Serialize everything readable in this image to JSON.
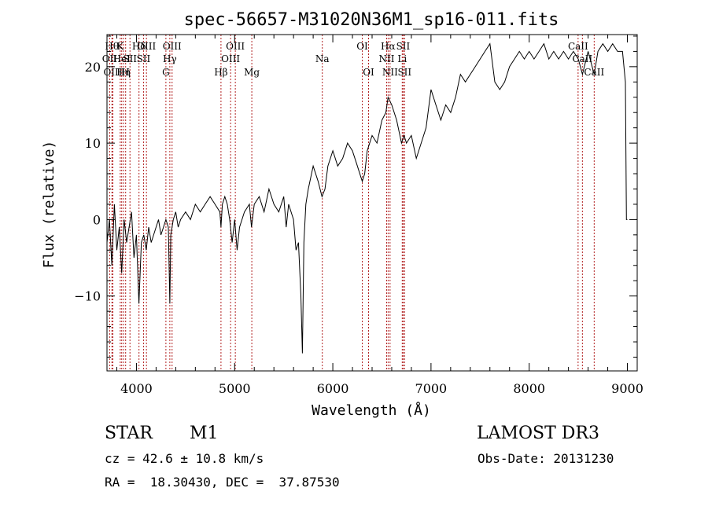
{
  "chart_data": {
    "type": "line",
    "title": "spec-56657-M31020N36M1_sp16-011.fits",
    "xlabel": "Wavelength (Å)",
    "ylabel": "Flux (relative)",
    "xlim": [
      3700,
      9100
    ],
    "ylim": [
      -19.8,
      24.2
    ],
    "x_ticks": [
      4000,
      5000,
      6000,
      7000,
      8000,
      9000
    ],
    "y_ticks": [
      -10,
      0,
      10,
      20
    ],
    "grid": false,
    "line_color": "#000000",
    "marker_color": "#b22222",
    "spectrum": [
      [
        3700,
        -3
      ],
      [
        3725,
        0
      ],
      [
        3750,
        -6
      ],
      [
        3775,
        2
      ],
      [
        3800,
        -4
      ],
      [
        3825,
        -1
      ],
      [
        3850,
        -7
      ],
      [
        3875,
        0
      ],
      [
        3900,
        -3
      ],
      [
        3925,
        -1
      ],
      [
        3950,
        1
      ],
      [
        3975,
        -5
      ],
      [
        4000,
        -2
      ],
      [
        4025,
        -11
      ],
      [
        4050,
        -3
      ],
      [
        4075,
        -2
      ],
      [
        4100,
        -4
      ],
      [
        4125,
        -1
      ],
      [
        4150,
        -3
      ],
      [
        4175,
        -2
      ],
      [
        4200,
        -1
      ],
      [
        4225,
        0
      ],
      [
        4250,
        -2
      ],
      [
        4275,
        -1
      ],
      [
        4300,
        0
      ],
      [
        4325,
        -1
      ],
      [
        4340,
        -11
      ],
      [
        4350,
        -2
      ],
      [
        4375,
        0
      ],
      [
        4400,
        1
      ],
      [
        4425,
        -1
      ],
      [
        4450,
        0
      ],
      [
        4500,
        1
      ],
      [
        4550,
        0
      ],
      [
        4600,
        2
      ],
      [
        4650,
        1
      ],
      [
        4700,
        2
      ],
      [
        4750,
        3
      ],
      [
        4800,
        2
      ],
      [
        4850,
        1
      ],
      [
        4861,
        -1
      ],
      [
        4875,
        2
      ],
      [
        4900,
        3
      ],
      [
        4925,
        2
      ],
      [
        4950,
        0
      ],
      [
        4975,
        -3
      ],
      [
        5000,
        0
      ],
      [
        5025,
        -4
      ],
      [
        5050,
        -1
      ],
      [
        5100,
        1
      ],
      [
        5150,
        2
      ],
      [
        5172,
        -1
      ],
      [
        5200,
        2
      ],
      [
        5250,
        3
      ],
      [
        5300,
        1
      ],
      [
        5350,
        4
      ],
      [
        5400,
        2
      ],
      [
        5450,
        1
      ],
      [
        5500,
        3
      ],
      [
        5525,
        -1
      ],
      [
        5550,
        2
      ],
      [
        5600,
        0
      ],
      [
        5625,
        -4
      ],
      [
        5650,
        -3
      ],
      [
        5675,
        -10
      ],
      [
        5690,
        -17.5
      ],
      [
        5705,
        -3
      ],
      [
        5725,
        2
      ],
      [
        5750,
        4
      ],
      [
        5800,
        7
      ],
      [
        5850,
        5
      ],
      [
        5890,
        3
      ],
      [
        5920,
        4
      ],
      [
        5950,
        7
      ],
      [
        6000,
        9
      ],
      [
        6050,
        7
      ],
      [
        6100,
        8
      ],
      [
        6150,
        10
      ],
      [
        6200,
        9
      ],
      [
        6250,
        7
      ],
      [
        6300,
        5
      ],
      [
        6325,
        6
      ],
      [
        6350,
        9
      ],
      [
        6400,
        11
      ],
      [
        6450,
        10
      ],
      [
        6500,
        13
      ],
      [
        6540,
        14
      ],
      [
        6563,
        16
      ],
      [
        6600,
        15
      ],
      [
        6650,
        13
      ],
      [
        6700,
        10
      ],
      [
        6725,
        11
      ],
      [
        6750,
        10
      ],
      [
        6800,
        11
      ],
      [
        6850,
        8
      ],
      [
        6900,
        10
      ],
      [
        6950,
        12
      ],
      [
        7000,
        17
      ],
      [
        7050,
        15
      ],
      [
        7100,
        13
      ],
      [
        7150,
        15
      ],
      [
        7200,
        14
      ],
      [
        7250,
        16
      ],
      [
        7300,
        19
      ],
      [
        7350,
        18
      ],
      [
        7400,
        19
      ],
      [
        7450,
        20
      ],
      [
        7500,
        21
      ],
      [
        7550,
        22
      ],
      [
        7600,
        23
      ],
      [
        7620,
        21
      ],
      [
        7650,
        18
      ],
      [
        7700,
        17
      ],
      [
        7750,
        18
      ],
      [
        7800,
        20
      ],
      [
        7850,
        21
      ],
      [
        7900,
        22
      ],
      [
        7950,
        21
      ],
      [
        8000,
        22
      ],
      [
        8050,
        21
      ],
      [
        8100,
        22
      ],
      [
        8150,
        23
      ],
      [
        8200,
        21
      ],
      [
        8250,
        22
      ],
      [
        8300,
        21
      ],
      [
        8350,
        22
      ],
      [
        8400,
        21
      ],
      [
        8450,
        22
      ],
      [
        8500,
        21
      ],
      [
        8542,
        19
      ],
      [
        8600,
        22
      ],
      [
        8662,
        19
      ],
      [
        8700,
        22
      ],
      [
        8750,
        23
      ],
      [
        8800,
        22
      ],
      [
        8850,
        23
      ],
      [
        8900,
        22
      ],
      [
        8950,
        22
      ],
      [
        8980,
        18
      ],
      [
        8990,
        0
      ],
      [
        9000,
        0
      ]
    ],
    "lines": [
      {
        "wl": 3727,
        "row": 2,
        "label": "OII"
      },
      {
        "wl": 3750,
        "row": 1,
        "label": "Hθ"
      },
      {
        "wl": 3760,
        "row": 3,
        "label": "OIII"
      },
      {
        "wl": 3835,
        "row": 1,
        "label": "K"
      },
      {
        "wl": 3850,
        "row": 2,
        "label": "HeI"
      },
      {
        "wl": 3869,
        "row": 3,
        "label": "Hη"
      },
      {
        "wl": 3890,
        "row": 3,
        "label": "H"
      },
      {
        "wl": 3934,
        "row": 2,
        "label": "SII"
      },
      {
        "wl": 4026,
        "row": 1,
        "label": "Hδ"
      },
      {
        "wl": 4072,
        "row": 2,
        "label": "SII"
      },
      {
        "wl": 4102,
        "row": 1,
        "label": "OIII"
      },
      {
        "wl": 4300,
        "row": 3,
        "label": "G"
      },
      {
        "wl": 4340,
        "row": 2,
        "label": "Hγ"
      },
      {
        "wl": 4363,
        "row": 1,
        "label": "OIII"
      },
      {
        "wl": 4861,
        "row": 3,
        "label": "Hβ"
      },
      {
        "wl": 4959,
        "row": 2,
        "label": "OIII"
      },
      {
        "wl": 5007,
        "row": 1,
        "label": "OIII"
      },
      {
        "wl": 5175,
        "row": 3,
        "label": "Mg"
      },
      {
        "wl": 5893,
        "row": 2,
        "label": "Na"
      },
      {
        "wl": 6300,
        "row": 1,
        "label": "OI"
      },
      {
        "wl": 6364,
        "row": 3,
        "label": "OI"
      },
      {
        "wl": 6548,
        "row": 2,
        "label": "NII"
      },
      {
        "wl": 6563,
        "row": 1,
        "label": "Hα"
      },
      {
        "wl": 6583,
        "row": 3,
        "label": "NII"
      },
      {
        "wl": 6707,
        "row": 2,
        "label": "Li"
      },
      {
        "wl": 6716,
        "row": 1,
        "label": "SII"
      },
      {
        "wl": 6731,
        "row": 3,
        "label": "SII"
      },
      {
        "wl": 8498,
        "row": 1,
        "label": "CaII"
      },
      {
        "wl": 8542,
        "row": 2,
        "label": "CaII"
      },
      {
        "wl": 8662,
        "row": 3,
        "label": "CaII"
      }
    ]
  },
  "info": {
    "object_class": "STAR",
    "subclass": "M1",
    "survey": "LAMOST DR3",
    "redshift": "cz = 42.6 ± 10.8 km/s",
    "obs_date": "Obs-Date: 20131230",
    "coords": "RA =  18.30430, DEC =  37.87530"
  }
}
